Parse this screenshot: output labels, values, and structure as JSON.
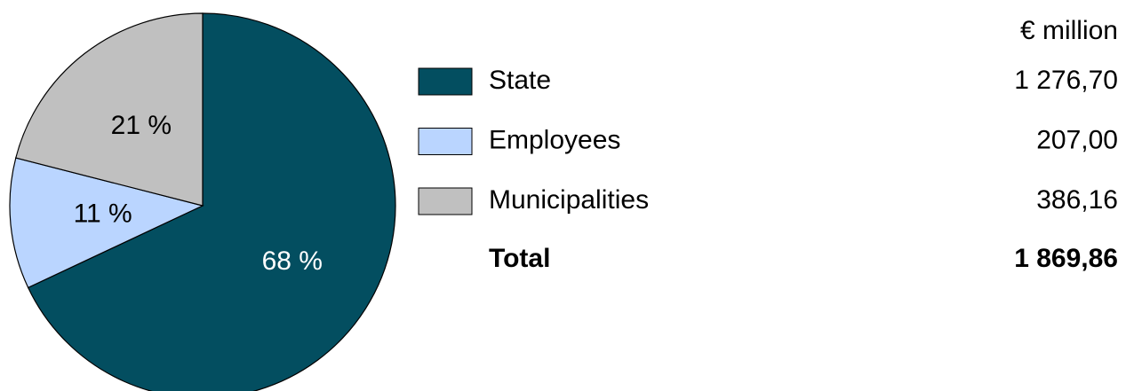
{
  "chart_data": {
    "type": "pie",
    "unit_label": "€ million",
    "categories": [
      "State",
      "Employees",
      "Municipalities"
    ],
    "colors": [
      "#034e60",
      "#bad5ff",
      "#c0c0c0"
    ],
    "values": [
      68,
      11,
      21
    ],
    "value_labels": [
      "68 %",
      "11 %",
      "21 %"
    ],
    "amounts": [
      "1 276,70",
      "207,00",
      "386,16"
    ],
    "total_label": "Total",
    "total_amount": "1 869,86"
  }
}
